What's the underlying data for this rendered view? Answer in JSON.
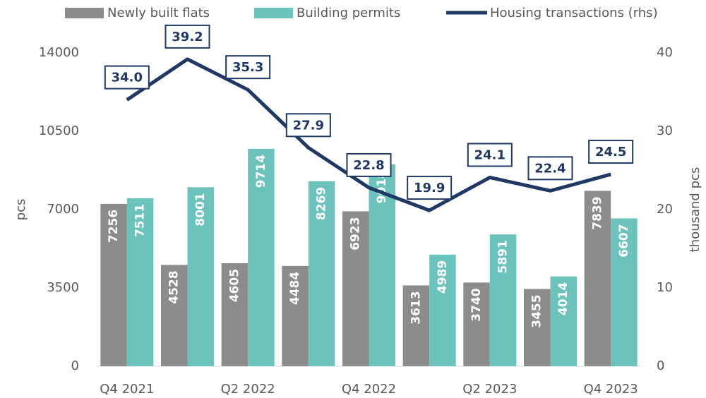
{
  "chart_data": {
    "type": "bar",
    "categories": [
      "Q4 2021",
      null,
      "Q2 2022",
      null,
      "Q4 2022",
      null,
      "Q2 2023",
      null,
      "Q4 2023"
    ],
    "ylabel": "pcs",
    "y2label": "thousand pcs",
    "ylim": [
      0,
      14000
    ],
    "yticks": [
      0,
      3500,
      7000,
      10500,
      14000
    ],
    "y2lim": [
      0,
      40
    ],
    "y2ticks": [
      0,
      10,
      20,
      30,
      40
    ],
    "legend": "top",
    "series": [
      {
        "name": "Newly built flats",
        "color": "#8c8c8c",
        "type": "bar",
        "values": [
          7256,
          4528,
          4605,
          4484,
          6923,
          3613,
          3740,
          3455,
          7839
        ]
      },
      {
        "name": "Building permits",
        "color": "#6cc3bc",
        "type": "bar",
        "values": [
          7511,
          8001,
          9714,
          8269,
          9018,
          4989,
          5891,
          4014,
          6607
        ]
      },
      {
        "name": "Housing transactions (rhs)",
        "color": "#1f3864",
        "type": "line",
        "axis": "y2",
        "values": [
          34.0,
          39.2,
          35.3,
          27.9,
          22.8,
          19.9,
          24.1,
          22.4,
          24.5
        ],
        "value_labels": [
          "34.0",
          "39.2",
          "35.3",
          "27.9",
          "22.8",
          "19.9",
          "24.1",
          "22.4",
          "24.5"
        ]
      }
    ]
  }
}
